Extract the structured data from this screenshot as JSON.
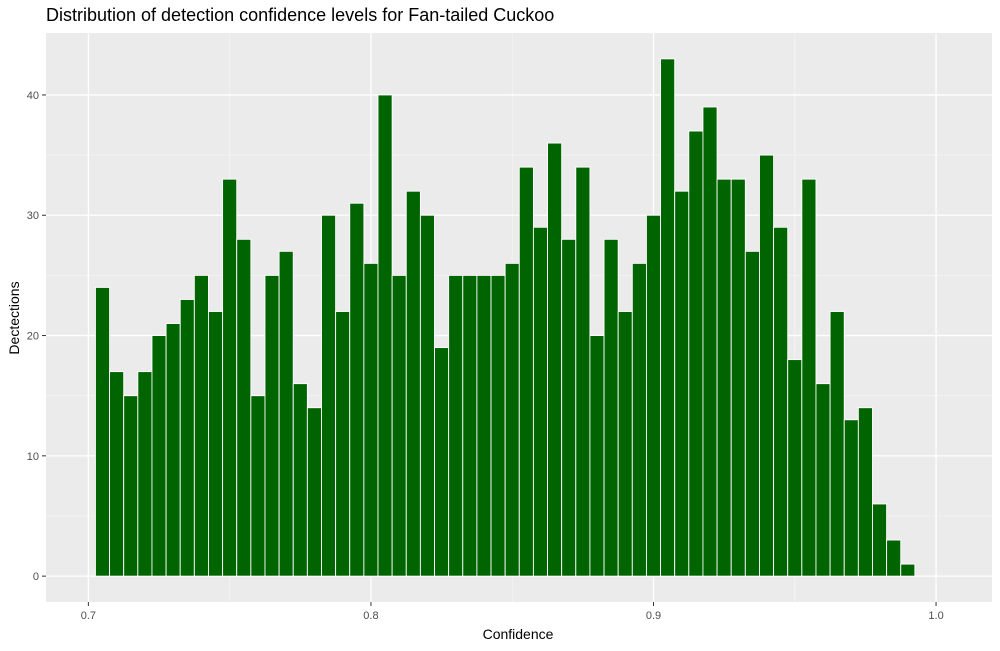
{
  "chart_data": {
    "type": "bar",
    "title": "Distribution of detection confidence levels for Fan-tailed Cuckoo",
    "xlabel": "Confidence",
    "ylabel": "Dectections",
    "xlim": [
      0.685,
      1.0198
    ],
    "ylim": [
      -2.15,
      45.15
    ],
    "x_ticks": [
      0.7,
      0.8,
      0.9,
      1.0
    ],
    "x_tick_labels": [
      "0.7",
      "0.8",
      "0.9",
      "1.0"
    ],
    "y_ticks": [
      0,
      10,
      20,
      30,
      40
    ],
    "y_tick_labels": [
      "0",
      "10",
      "20",
      "30",
      "40"
    ],
    "bin_width": 0.005,
    "x": [
      0.705,
      0.71,
      0.715,
      0.72,
      0.725,
      0.73,
      0.735,
      0.74,
      0.745,
      0.75,
      0.755,
      0.76,
      0.765,
      0.77,
      0.775,
      0.78,
      0.785,
      0.79,
      0.795,
      0.8,
      0.805,
      0.81,
      0.815,
      0.82,
      0.825,
      0.83,
      0.835,
      0.84,
      0.845,
      0.85,
      0.855,
      0.86,
      0.865,
      0.87,
      0.875,
      0.88,
      0.885,
      0.89,
      0.895,
      0.9,
      0.905,
      0.91,
      0.915,
      0.92,
      0.925,
      0.93,
      0.935,
      0.94,
      0.945,
      0.95,
      0.955,
      0.96,
      0.965,
      0.97,
      0.975,
      0.98,
      0.985,
      0.99
    ],
    "values": [
      24,
      17,
      15,
      17,
      20,
      21,
      23,
      25,
      22,
      33,
      28,
      15,
      25,
      27,
      16,
      14,
      30,
      22,
      31,
      26,
      40,
      25,
      32,
      30,
      19,
      25,
      25,
      25,
      25,
      26,
      34,
      29,
      36,
      28,
      34,
      20,
      28,
      22,
      26,
      30,
      43,
      32,
      37,
      39,
      33,
      33,
      27,
      35,
      29,
      18,
      33,
      16,
      22,
      13,
      14,
      6,
      3,
      1
    ],
    "grid": true,
    "legend": "none",
    "colors": {
      "bar_fill": "#006400",
      "bar_outline": "#ffffff",
      "panel_background": "#ebebeb",
      "grid_major": "#ffffff",
      "grid_minor": "#f5f5f5"
    }
  }
}
